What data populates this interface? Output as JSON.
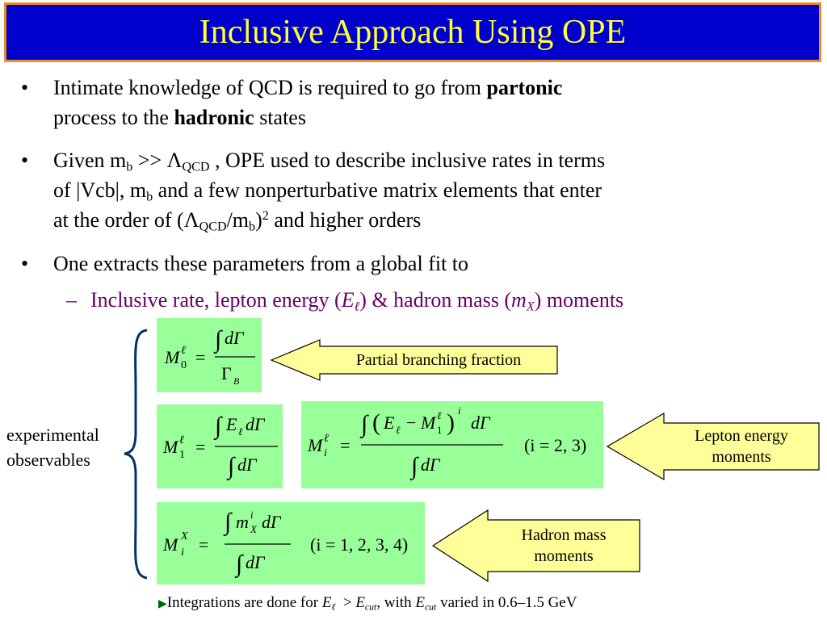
{
  "title": "Inclusive Approach Using OPE",
  "bullets": {
    "b1": {
      "marker": "•",
      "t1": "Intimate knowledge of QCD is required to go from ",
      "t2": "partonic",
      "t3": "process to the ",
      "t4": "hadronic",
      "t5": " states"
    },
    "b2": {
      "marker": "•",
      "t1": "Given m",
      "t2": "b",
      "t3": " >> Λ",
      "t4": "QCD",
      "t5": " , OPE used to describe inclusive rates  in terms",
      "t6": "of |Vcb|,  m",
      "t7": "b",
      "t8": " and a few nonperturbative matrix elements that enter",
      "t9": "at the order of (Λ",
      "t10": "QCD",
      "t11": "/m",
      "t12": "b",
      "t13": ")",
      "t14": "2",
      "t15": " and higher orders"
    },
    "b3": {
      "marker": "•",
      "t1": "One extracts these parameters from a global fit to"
    }
  },
  "sub_bullet": {
    "marker": "–",
    "t1": "Inclusive rate, lepton energy (",
    "t2": "E",
    "t3": "ℓ",
    "t4": ") & hadron mass (",
    "t5": "m",
    "t6": "X",
    "t7": ") moments"
  },
  "side_label": {
    "line1": "experimental",
    "line2": "observables"
  },
  "equations": {
    "m0": {
      "M": "M",
      "sup": "ℓ",
      "sub": "0",
      "eq": "=",
      "integral": "∫",
      "num": "dΓ",
      "den": "Γ",
      "den_sub": "B"
    },
    "m1": {
      "M": "M",
      "sup": "ℓ",
      "sub": "1",
      "eq": "=",
      "integral": "∫",
      "num_E": "E",
      "num_E_sub": "ℓ",
      "num_rest": "dΓ",
      "den": "dΓ"
    },
    "mi": {
      "M": "M",
      "sup": "ℓ",
      "sub": "i",
      "eq": "=",
      "integral": "∫",
      "lp": "(",
      "E": "E",
      "E_sub": "ℓ",
      "minus": "−",
      "M1": "M",
      "M1_sub": "1",
      "M1_sup": "ℓ",
      "rp": ")",
      "pow": "i",
      "dG": "dΓ",
      "den": "dΓ",
      "range": "(i = 2, 3)"
    },
    "mx": {
      "M": "M",
      "sup": "X",
      "sub": "i",
      "eq": "=",
      "integral": "∫",
      "m": "m",
      "m_sup": "i",
      "m_sub": "X",
      "dG": "dΓ",
      "den": "dΓ",
      "range": "(i = 1, 2, 3, 4)"
    }
  },
  "callouts": {
    "partial": "Partial branching fraction",
    "lepton_line1": "Lepton energy",
    "lepton_line2": "moments",
    "hadron_line1": "Hadron mass",
    "hadron_line2": "moments"
  },
  "footnote": {
    "arrow": "▶",
    "t1": "Integrations are done for ",
    "E1": "E",
    "E1_sub": "ℓ",
    "gt": "  > ",
    "E2": "E",
    "E2_sub": "cut",
    "t2": ", with ",
    "E3": "E",
    "E3_sub": "cut",
    "t3": " varied in 0.6–1.5 GeV"
  },
  "colors": {
    "title_bg": "#0000cc",
    "title_text": "#ffff33",
    "title_border": "#f08c1e",
    "equation_bg": "#99ff99",
    "callout_fill": "#ffff99",
    "sub_bullet_text": "#660066",
    "brace": "#003366",
    "footnote_arrow": "#006600"
  }
}
